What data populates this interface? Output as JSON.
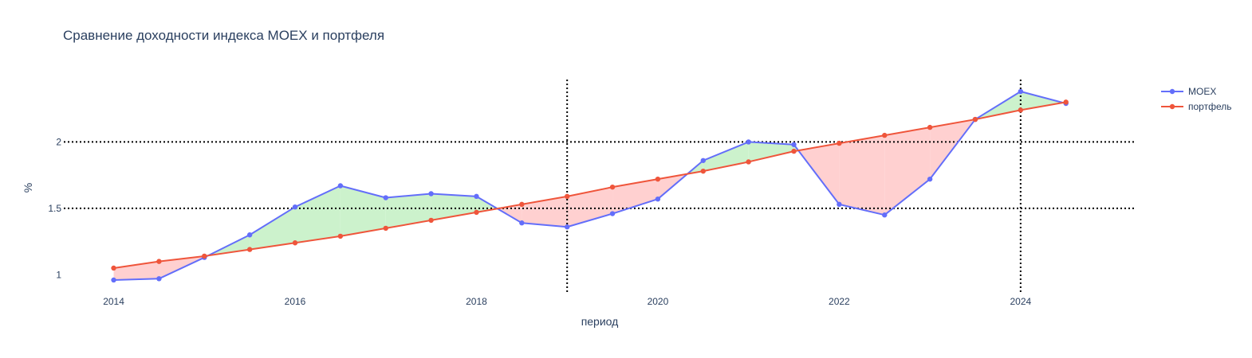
{
  "chart_data": {
    "type": "line",
    "title": "Сравнение доходности индекса MOEX и портфеля",
    "xlabel": "период",
    "ylabel": "%",
    "xlim": [
      2013.45,
      2025.25
    ],
    "ylim": [
      0.87,
      2.47
    ],
    "x_ticks": [
      2014,
      2016,
      2018,
      2020,
      2022,
      2024
    ],
    "x_tick_labels": [
      "2014",
      "2016",
      "2018",
      "2020",
      "2022",
      "2024"
    ],
    "y_ticks": [
      1,
      1.5,
      2
    ],
    "y_tick_labels": [
      "1",
      "1.5",
      "2"
    ],
    "x": [
      2014.0,
      2014.5,
      2015.0,
      2015.5,
      2016.0,
      2016.5,
      2017.0,
      2017.5,
      2018.0,
      2018.5,
      2019.0,
      2019.5,
      2020.0,
      2020.5,
      2021.0,
      2021.5,
      2022.0,
      2022.5,
      2023.0,
      2023.5,
      2024.0,
      2024.5
    ],
    "series": [
      {
        "name": "MOEX",
        "color": "#636efa",
        "values": [
          0.96,
          0.97,
          1.13,
          1.3,
          1.51,
          1.67,
          1.58,
          1.61,
          1.59,
          1.39,
          1.36,
          1.46,
          1.57,
          1.86,
          2.0,
          1.98,
          1.53,
          1.45,
          1.72,
          2.17,
          2.38,
          2.29
        ]
      },
      {
        "name": "портфель",
        "color": "#ef553b",
        "values": [
          1.05,
          1.1,
          1.14,
          1.19,
          1.24,
          1.29,
          1.35,
          1.41,
          1.47,
          1.53,
          1.59,
          1.66,
          1.72,
          1.78,
          1.85,
          1.93,
          1.99,
          2.05,
          2.11,
          2.17,
          2.24,
          2.3
        ]
      }
    ],
    "fill_colors": {
      "moex_above": "#ccf2cc",
      "moex_below": "#ffd0d0"
    },
    "hlines": [
      1.5,
      2
    ],
    "vlines": [
      2019.0,
      2024.0
    ],
    "reference_line_style": "dotted black",
    "grid": false,
    "legend_position": "top-right"
  }
}
